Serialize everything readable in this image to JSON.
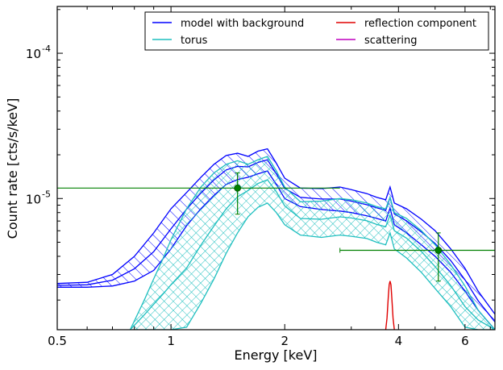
{
  "chart_data": {
    "type": "line",
    "xlabel": "Energy [keV]",
    "ylabel": "Count rate [cts/s/keV]",
    "xscale": "log",
    "yscale": "log",
    "xlim": [
      0.5,
      7.2
    ],
    "ylim": [
      1.25e-06,
      0.00021
    ],
    "x_ticks": [
      {
        "value": 0.5,
        "label": "0.5"
      },
      {
        "value": 1,
        "label": "1"
      },
      {
        "value": 2,
        "label": "2"
      },
      {
        "value": 4,
        "label": "4"
      },
      {
        "value": 6,
        "label": "6"
      }
    ],
    "y_ticks": [
      {
        "value": 1e-05,
        "label": "10",
        "exp": "-5"
      },
      {
        "value": 0.0001,
        "label": "10",
        "exp": "-4"
      }
    ],
    "legend": {
      "placement": "top-right",
      "columns": 2,
      "entries": [
        {
          "label": "model with background",
          "color": "#0000ff"
        },
        {
          "label": "reflection component",
          "color": "#e00000"
        },
        {
          "label": "torus",
          "color": "#1fbfbf"
        },
        {
          "label": "scattering",
          "color": "#bf00bf"
        }
      ]
    },
    "series": [
      {
        "name": "model with background",
        "color": "#0000ff",
        "style": "hatched band",
        "x": [
          0.5,
          0.6,
          0.7,
          0.8,
          0.9,
          1.0,
          1.1,
          1.2,
          1.3,
          1.4,
          1.5,
          1.6,
          1.7,
          1.8,
          1.9,
          2.0,
          2.2,
          2.5,
          2.8,
          3.0,
          3.3,
          3.5,
          3.7,
          3.8,
          3.9,
          4.2,
          4.6,
          5.0,
          5.5,
          6.0,
          6.5,
          7.2
        ],
        "upper": [
          2.6e-06,
          2.65e-06,
          3e-06,
          4e-06,
          5.8e-06,
          8.5e-06,
          1.1e-05,
          1.4e-05,
          1.72e-05,
          1.98e-05,
          2.05e-05,
          1.95e-05,
          2.12e-05,
          2.2e-05,
          1.75e-05,
          1.38e-05,
          1.18e-05,
          1.17e-05,
          1.2e-05,
          1.15e-05,
          1.08e-05,
          1.02e-05,
          9.8e-06,
          1.2e-05,
          9.3e-06,
          8.5e-06,
          7.2e-06,
          6e-06,
          4.5e-06,
          3.3e-06,
          2.3e-06,
          1.6e-06
        ],
        "lower": [
          2.45e-06,
          2.45e-06,
          2.5e-06,
          2.7e-06,
          3.2e-06,
          4.5e-06,
          6.5e-06,
          8.5e-06,
          1.05e-05,
          1.25e-05,
          1.35e-05,
          1.4e-05,
          1.48e-05,
          1.55e-05,
          1.25e-05,
          1e-05,
          8.8e-06,
          8.4e-06,
          8.2e-06,
          8e-06,
          7.6e-06,
          7.3e-06,
          7e-06,
          8.6e-06,
          6.6e-06,
          5.8e-06,
          4.8e-06,
          4e-06,
          3.1e-06,
          2.3e-06,
          1.7e-06,
          1.25e-06
        ]
      },
      {
        "name": "torus",
        "color": "#1fbfbf",
        "style": "cross-hatched band",
        "x": [
          0.78,
          0.85,
          0.9,
          0.95,
          1.0,
          1.1,
          1.2,
          1.3,
          1.4,
          1.5,
          1.6,
          1.7,
          1.8,
          1.9,
          2.0,
          2.2,
          2.5,
          2.8,
          3.0,
          3.3,
          3.5,
          3.7,
          3.8,
          3.9,
          4.2,
          4.6,
          5.0,
          5.5,
          6.0,
          6.5,
          7.2
        ],
        "upper": [
          1.25e-06,
          2e-06,
          2.8e-06,
          3.8e-06,
          5.2e-06,
          8.5e-06,
          1.2e-05,
          1.5e-05,
          1.72e-05,
          1.82e-05,
          1.72e-05,
          1.85e-05,
          1.95e-05,
          1.55e-05,
          1.2e-05,
          9.5e-06,
          9.6e-06,
          1e-05,
          9.8e-06,
          9.3e-06,
          8.8e-06,
          8.5e-06,
          1.02e-05,
          8e-06,
          7.3e-06,
          6e-06,
          4.8e-06,
          3.5e-06,
          2.5e-06,
          1.7e-06,
          1.25e-06
        ],
        "lower": [
          1.25e-06,
          1.25e-06,
          1.25e-06,
          1.25e-06,
          1.25e-06,
          1.3e-06,
          1.9e-06,
          2.8e-06,
          4.2e-06,
          5.8e-06,
          7.5e-06,
          8.7e-06,
          9.3e-06,
          8e-06,
          6.6e-06,
          5.6e-06,
          5.4e-06,
          5.6e-06,
          5.5e-06,
          5.3e-06,
          5e-06,
          4.8e-06,
          5.8e-06,
          4.5e-06,
          3.9e-06,
          3.1e-06,
          2.4e-06,
          1.8e-06,
          1.3e-06,
          1.25e-06,
          1.25e-06
        ]
      },
      {
        "name": "reflection component",
        "color": "#e00000",
        "style": "line",
        "x": [
          3.7,
          3.73,
          3.76,
          3.78,
          3.8,
          3.82,
          3.84,
          3.87,
          3.9
        ],
        "y": [
          1.25e-06,
          1.5e-06,
          2.1e-06,
          2.55e-06,
          2.7e-06,
          2.55e-06,
          2.1e-06,
          1.5e-06,
          1.25e-06
        ]
      },
      {
        "name": "data",
        "color": "#008000",
        "style": "points with error bars",
        "points": [
          {
            "x": 1.5,
            "y": 1.18e-05,
            "x_low": 0.5,
            "x_high": 2.8,
            "y_low": 7.8e-06,
            "y_high": 1.5e-05
          },
          {
            "x": 5.1,
            "y": 4.4e-06,
            "x_low": 2.8,
            "x_high": 7.2,
            "y_low": 2.7e-06,
            "y_high": 5.8e-06
          }
        ]
      }
    ]
  }
}
